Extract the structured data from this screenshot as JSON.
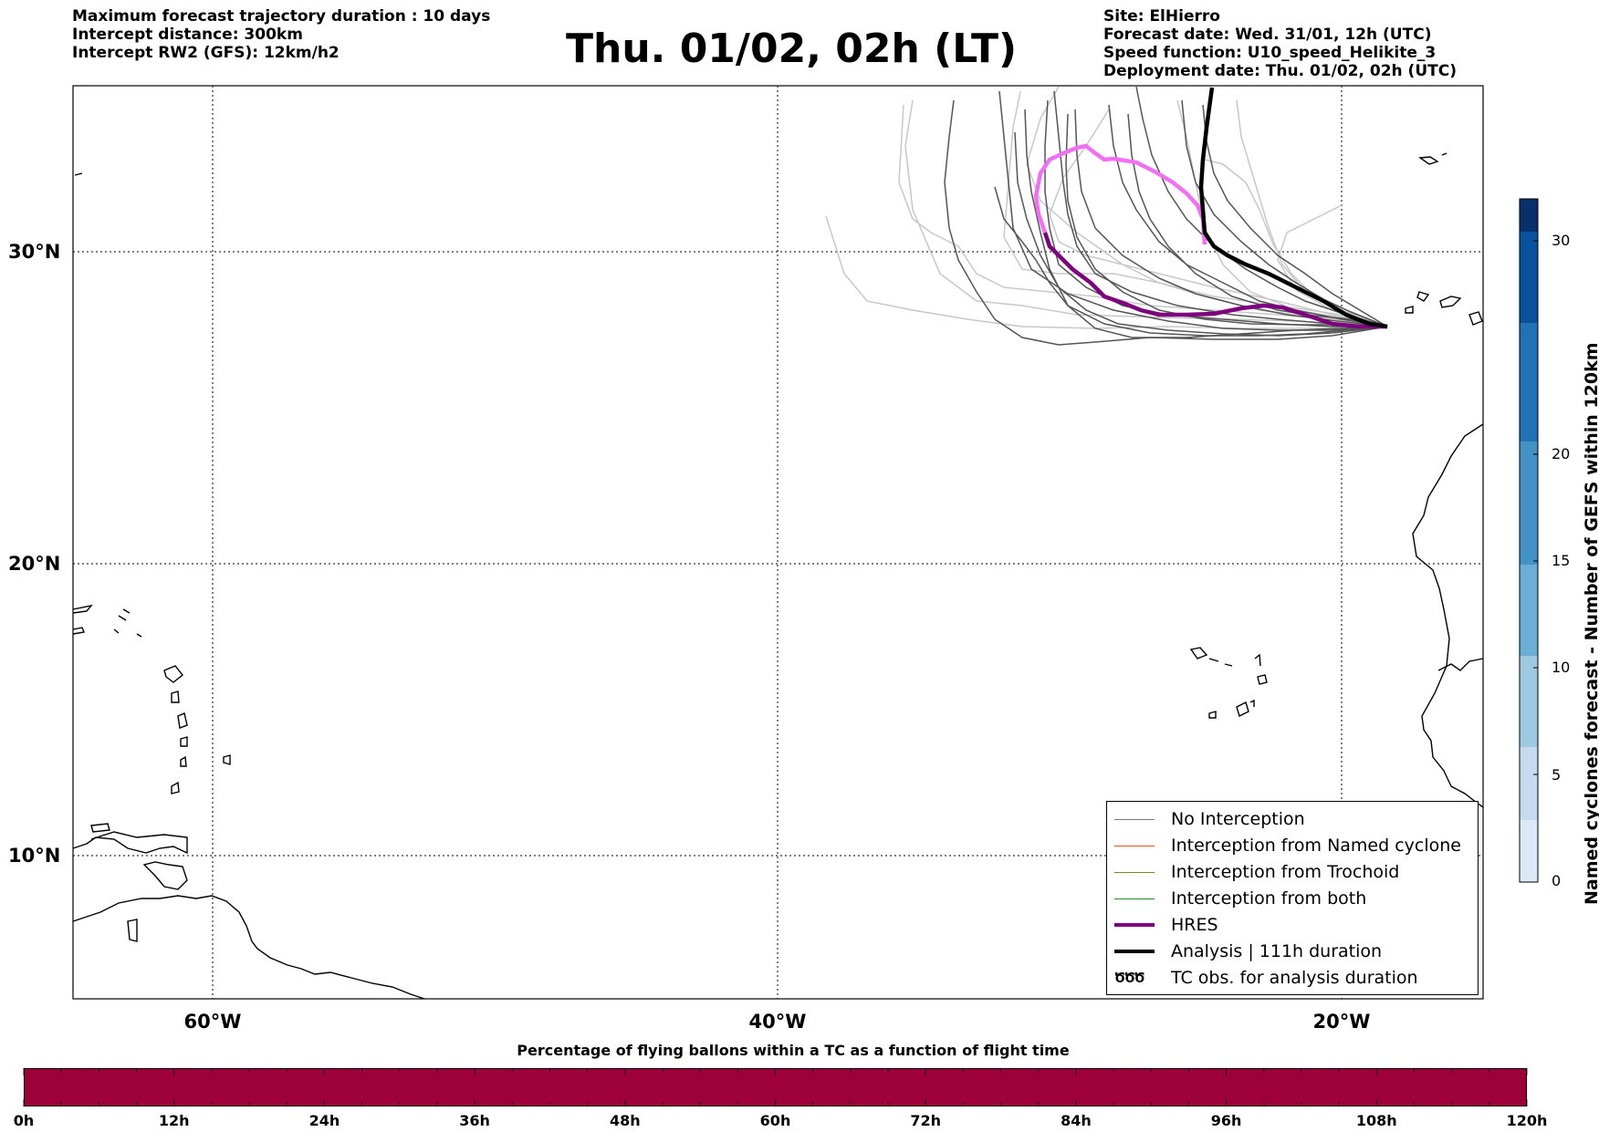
{
  "header": {
    "left": [
      "Maximum forecast trajectory duration : 10 days",
      "Intercept distance: 300km",
      "Intercept RW2 (GFS):  12km/h2"
    ],
    "title": "Thu. 01/02, 02h (LT)",
    "right": [
      "Site: ElHierro",
      "Forecast date: Wed. 31/01, 12h (UTC)",
      "Speed function: U10_speed_Helikite_3",
      "Deployment date: Thu. 01/02, 02h (UTC)"
    ]
  },
  "map": {
    "lat_labels": [
      "30°N",
      "20°N",
      "10°N"
    ],
    "lon_labels": [
      "60°W",
      "40°W",
      "20°W"
    ],
    "colors": {
      "no_interception": "#555555",
      "named_cyclone": "#e8501a",
      "trochoid": "#808020",
      "both": "#2a8a2a",
      "hres": "#7f007f",
      "hres_early": "#f26ef2",
      "analysis": "#000000",
      "ensemble_light": "#c8c8c8"
    }
  },
  "legend": {
    "items": [
      {
        "label": "No Interception",
        "color": "#777777",
        "style": "thin"
      },
      {
        "label": "Interception from Named cyclone",
        "color": "#e8501a",
        "style": "thin"
      },
      {
        "label": "Interception from Trochoid",
        "color": "#808020",
        "style": "thin"
      },
      {
        "label": "Interception from both",
        "color": "#2a8a2a",
        "style": "thin"
      },
      {
        "label": "HRES",
        "color": "#7f007f",
        "style": "thick"
      },
      {
        "label": "Analysis | 111h duration",
        "color": "#000000",
        "style": "thick"
      },
      {
        "label": "TC obs. for analysis duration",
        "color": "#000000",
        "style": "glyph",
        "glyph": "ԾԾԾ"
      }
    ]
  },
  "colorbar": {
    "label": "Named cyclones forecast - Number of GEFS within 120km",
    "ticks": [
      "0",
      "5",
      "10",
      "15",
      "20",
      "30"
    ],
    "colors": [
      "#dbe9f6",
      "#c6dbef",
      "#9ecae1",
      "#6baed6",
      "#4292c6",
      "#2171b5",
      "#08519c",
      "#08306b"
    ]
  },
  "percentage_bar": {
    "title": "Percentage of flying ballons within a TC as a function of flight time",
    "color": "#9e003a",
    "ticks": [
      "0h",
      "12h",
      "24h",
      "36h",
      "48h",
      "60h",
      "72h",
      "84h",
      "96h",
      "108h",
      "120h"
    ]
  }
}
